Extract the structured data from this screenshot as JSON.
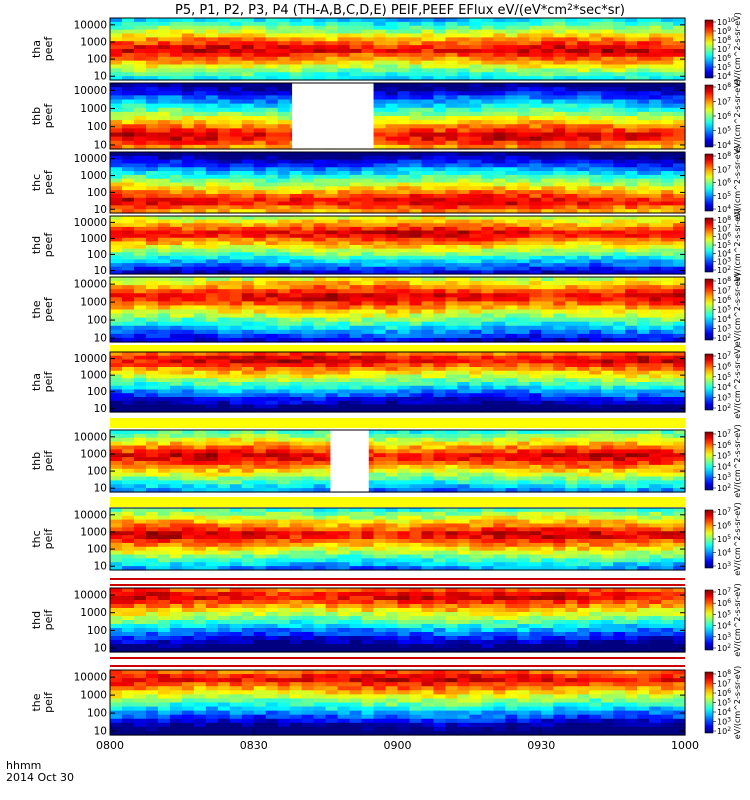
{
  "chart_data": {
    "type": "heatmap",
    "title": "P5, P1, P2, P3, P4 (TH-A,B,C,D,E) PEIF,PEEF EFlux eV/(eV*cm^2*sec*sr)",
    "date_label": "2014 Oct 30",
    "time_label": "hhmm",
    "x_ticks": [
      "0800",
      "0830",
      "0900",
      "0930",
      "1000"
    ],
    "x_range": [
      "0800",
      "1000"
    ],
    "y_ticks": [
      "10",
      "100",
      "1000",
      "10000"
    ],
    "y_scale": "log",
    "colorbar_label": "eV/(cm^2-s-sr-eV)",
    "panels": [
      {
        "label": "tha peef",
        "probe": "tha",
        "species": "peef",
        "colorbar_ticks": [
          "10^4",
          "10^5",
          "10^6",
          "10^7",
          "10^8",
          "10^9",
          "10^10"
        ],
        "peak_energy": 350,
        "gap": null
      },
      {
        "label": "thb peef",
        "probe": "thb",
        "species": "peef",
        "colorbar_ticks": [
          "10^4",
          "10^5",
          "10^6",
          "10^7",
          "10^8"
        ],
        "peak_energy": 30,
        "gap": [
          "0838",
          "0855"
        ]
      },
      {
        "label": "thc peef",
        "probe": "thc",
        "species": "peef",
        "colorbar_ticks": [
          "10^4",
          "10^5",
          "10^6",
          "10^7",
          "10^8"
        ],
        "peak_energy": 30,
        "gap": null
      },
      {
        "label": "thd peef",
        "probe": "thd",
        "species": "peef",
        "colorbar_ticks": [
          "10^2",
          "10^3",
          "10^4",
          "10^5",
          "10^6",
          "10^7",
          "10^8"
        ],
        "peak_energy": 2000,
        "gap": null
      },
      {
        "label": "the peef",
        "probe": "the",
        "species": "peef",
        "colorbar_ticks": [
          "10^2",
          "10^3",
          "10^4",
          "10^5",
          "10^6",
          "10^7",
          "10^8"
        ],
        "peak_energy": 2000,
        "gap": null
      },
      {
        "label": "tha peif",
        "probe": "tha",
        "species": "peif",
        "colorbar_ticks": [
          "10^2",
          "10^3",
          "10^4",
          "10^5",
          "10^6",
          "10^7"
        ],
        "peak_energy": 8000,
        "gap": null
      },
      {
        "label": "thb peif",
        "probe": "thb",
        "species": "peif",
        "colorbar_ticks": [
          "10^2",
          "10^3",
          "10^4",
          "10^5",
          "10^6",
          "10^7"
        ],
        "peak_energy": 700,
        "gap": [
          "0846",
          "0854"
        ]
      },
      {
        "label": "thc peif",
        "probe": "thc",
        "species": "peif",
        "colorbar_ticks": [
          "10^3",
          "10^4",
          "10^5",
          "10^6",
          "10^7"
        ],
        "peak_energy": 700,
        "gap": null
      },
      {
        "label": "thd peif",
        "probe": "thd",
        "species": "peif",
        "colorbar_ticks": [
          "10^2",
          "10^3",
          "10^4",
          "10^5",
          "10^6",
          "10^7"
        ],
        "peak_energy": 8000,
        "gap": null
      },
      {
        "label": "the peif",
        "probe": "the",
        "species": "peif",
        "colorbar_ticks": [
          "10^2",
          "10^3",
          "10^4",
          "10^5",
          "10^6",
          "10^7",
          "10^8"
        ],
        "peak_energy": 8000,
        "gap": null
      }
    ]
  }
}
